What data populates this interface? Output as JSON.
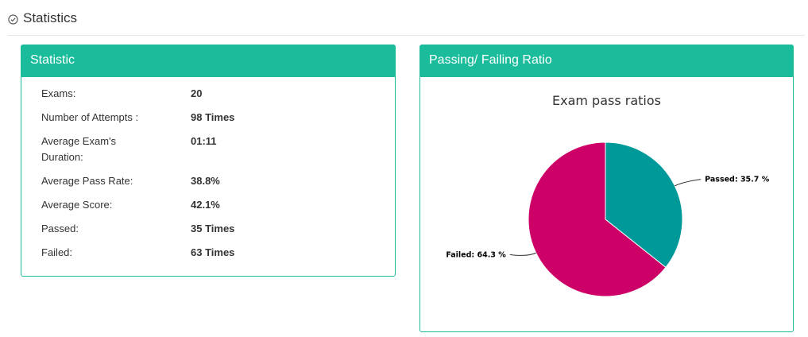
{
  "header": {
    "title": "Statistics",
    "icon": "check-circle-icon"
  },
  "statistic_panel": {
    "title": "Statistic",
    "rows": [
      {
        "label": "Exams:",
        "value": "20"
      },
      {
        "label": "Number of Attempts :",
        "value": "98 Times"
      },
      {
        "label": "Average Exam's Duration:",
        "value": "01:11"
      },
      {
        "label": "Average Pass Rate:",
        "value": "38.8%"
      },
      {
        "label": "Average Score:",
        "value": "42.1%"
      },
      {
        "label": "Passed:",
        "value": "35 Times"
      },
      {
        "label": "Failed:",
        "value": "63 Times"
      }
    ]
  },
  "ratio_panel": {
    "title": "Passing/ Failing Ratio"
  },
  "colors": {
    "accent": "#1abc9c",
    "passed": "#009999",
    "failed": "#cc0066"
  },
  "chart_data": {
    "type": "pie",
    "title": "Exam pass ratios",
    "slices": [
      {
        "name": "Passed",
        "value": 35.7,
        "label": "Passed: 35.7 %"
      },
      {
        "name": "Failed",
        "value": 64.3,
        "label": "Failed: 64.3 %"
      }
    ]
  }
}
